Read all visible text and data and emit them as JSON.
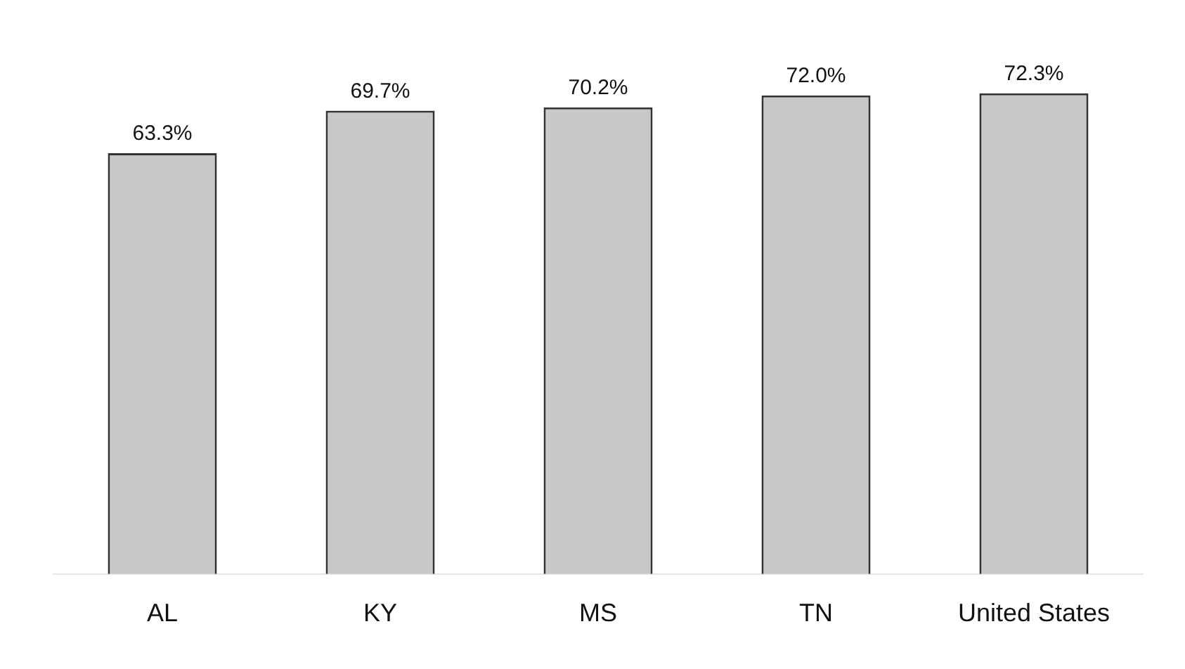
{
  "chart_data": {
    "type": "bar",
    "categories": [
      "AL",
      "KY",
      "MS",
      "TN",
      "United States"
    ],
    "values": [
      63.3,
      69.7,
      70.2,
      72.0,
      72.3
    ],
    "value_labels": [
      "63.3%",
      "69.7%",
      "70.2%",
      "72.0%",
      "72.3%"
    ],
    "color": "#c8c8c8",
    "relative": false,
    "grid": false,
    "legend": false
  }
}
